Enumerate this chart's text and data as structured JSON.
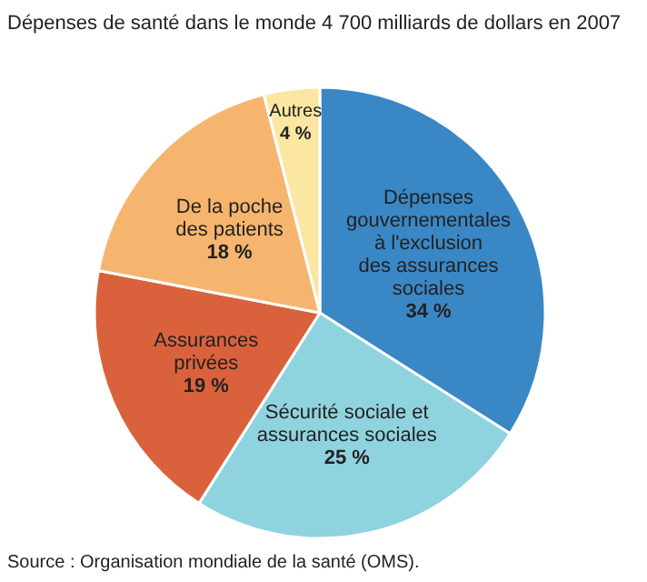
{
  "chart_data": {
    "type": "pie",
    "title": "Dépenses de santé dans le monde 4 700 milliards de dollars en 2007",
    "categories": [
      "Dépenses gouvernementales à l'exclusion des assurances sociales",
      "Sécurité sociale et assurances sociales",
      "Assurances privées",
      "De la poche des patients",
      "Autres"
    ],
    "values": [
      34,
      25,
      19,
      18,
      4
    ],
    "value_labels": [
      "34 %",
      "25 %",
      "19 %",
      "18 %",
      "4 %"
    ],
    "colors": [
      "#3a87c6",
      "#8fd3df",
      "#d9623d",
      "#f6b56e",
      "#fbe6a2"
    ],
    "annotations": [
      "Source : Organisation mondiale de la santé (OMS)."
    ]
  }
}
